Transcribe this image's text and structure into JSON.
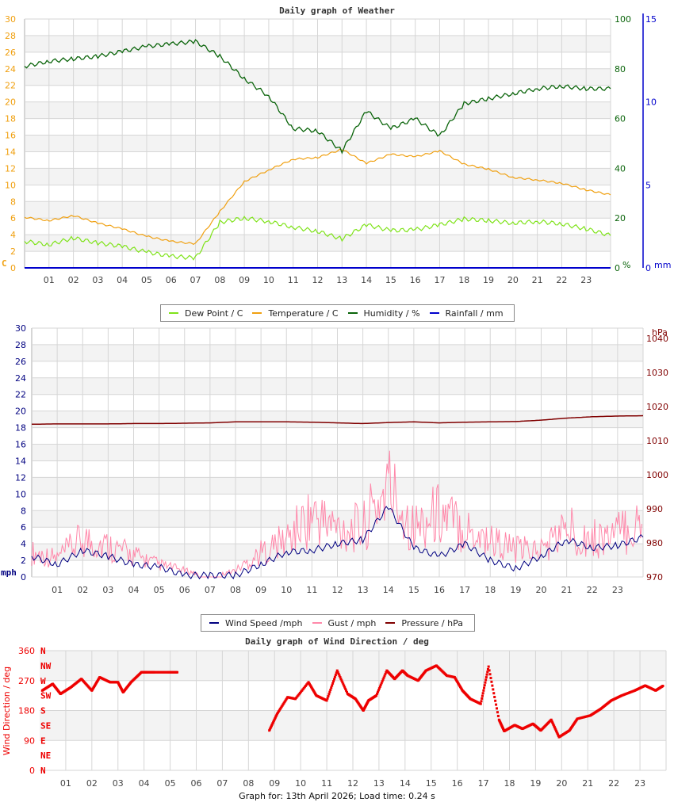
{
  "footer": {
    "text": "Graph for: 13th April 2026; Load time: 0.24 s"
  },
  "colors": {
    "dew_point": "#7fe31a",
    "temperature": "#f0a010",
    "humidity": "#0a640a",
    "rainfall": "#0000cc",
    "wind_speed": "#000080",
    "gust": "#ff88aa",
    "pressure": "#800000",
    "wind_dir": "#ee0000"
  },
  "legend1": {
    "items": [
      {
        "label": "Dew Point / C",
        "color": "#7fe31a"
      },
      {
        "label": "Temperature / C",
        "color": "#f0a010"
      },
      {
        "label": "Humidity / %",
        "color": "#0a640a"
      },
      {
        "label": "Rainfall / mm",
        "color": "#0000cc"
      }
    ]
  },
  "legend2": {
    "items": [
      {
        "label": "Wind Speed /mph",
        "color": "#000080"
      },
      {
        "label": "Gust / mph",
        "color": "#ff88aa"
      },
      {
        "label": "Pressure / hPa",
        "color": "#800000"
      }
    ]
  },
  "chart_data": [
    {
      "type": "line",
      "title": "Daily graph of Weather",
      "xlabel": "",
      "x_ticks": [
        "01",
        "02",
        "03",
        "04",
        "05",
        "06",
        "07",
        "08",
        "09",
        "10",
        "11",
        "12",
        "13",
        "14",
        "15",
        "16",
        "17",
        "18",
        "19",
        "20",
        "21",
        "22",
        "23"
      ],
      "left_axis": {
        "label": "C",
        "ticks": [
          0,
          2,
          4,
          6,
          8,
          10,
          12,
          14,
          16,
          18,
          20,
          22,
          24,
          26,
          28,
          30
        ],
        "range": [
          0,
          30
        ]
      },
      "right_axis_1": {
        "label": "%",
        "ticks": [
          0,
          20,
          40,
          60,
          80,
          100
        ],
        "range": [
          0,
          100
        ]
      },
      "right_axis_2": {
        "label": "mm",
        "ticks": [
          0,
          5,
          10,
          15
        ],
        "range": [
          0,
          15
        ]
      },
      "x": [
        0,
        1,
        2,
        3,
        4,
        5,
        6,
        7,
        8,
        9,
        10,
        11,
        12,
        13,
        14,
        15,
        16,
        17,
        18,
        19,
        20,
        21,
        22,
        23,
        24
      ],
      "series": [
        {
          "name": "Dew Point / C",
          "axis": "left",
          "values": [
            3.2,
            2.8,
            3.6,
            3.0,
            2.6,
            1.9,
            1.4,
            1.2,
            5.5,
            6.0,
            5.6,
            4.9,
            4.4,
            3.5,
            5.2,
            4.5,
            4.6,
            5.2,
            5.9,
            5.7,
            5.4,
            5.6,
            5.3,
            4.7,
            3.9
          ]
        },
        {
          "name": "Temperature / C",
          "axis": "left",
          "values": [
            6.1,
            5.7,
            6.3,
            5.4,
            4.7,
            3.8,
            3.2,
            2.9,
            6.8,
            10.4,
            11.8,
            13.1,
            13.3,
            14.3,
            12.6,
            13.7,
            13.4,
            14.1,
            12.5,
            11.9,
            10.9,
            10.6,
            10.2,
            9.4,
            8.8
          ]
        },
        {
          "name": "Humidity / %",
          "axis": "right_1",
          "values": [
            81,
            83,
            84,
            85,
            87,
            89,
            90,
            91,
            85,
            76,
            69,
            56,
            55,
            47,
            63,
            56,
            60,
            53,
            66,
            68,
            70,
            72,
            73,
            72,
            72
          ]
        },
        {
          "name": "Rainfall / mm",
          "axis": "right_2",
          "values": [
            0,
            0,
            0,
            0,
            0,
            0,
            0,
            0,
            0,
            0,
            0,
            0,
            0,
            0,
            0,
            0,
            0,
            0,
            0,
            0,
            0,
            0,
            0,
            0,
            0
          ]
        }
      ],
      "grid": true
    },
    {
      "type": "line",
      "title": "",
      "x_ticks": [
        "01",
        "02",
        "03",
        "04",
        "05",
        "06",
        "07",
        "08",
        "09",
        "10",
        "11",
        "12",
        "13",
        "14",
        "15",
        "16",
        "17",
        "18",
        "19",
        "20",
        "21",
        "22",
        "23"
      ],
      "left_axis": {
        "label": "mph",
        "ticks": [
          0,
          2,
          4,
          6,
          8,
          10,
          12,
          14,
          16,
          18,
          20,
          22,
          24,
          26,
          28,
          30
        ],
        "range": [
          0,
          30
        ]
      },
      "right_axis": {
        "label": "hPa",
        "ticks": [
          970,
          980,
          990,
          1000,
          1010,
          1020,
          1030,
          1040
        ],
        "range": [
          970,
          1043
        ]
      },
      "x": [
        0,
        1,
        2,
        3,
        4,
        5,
        6,
        7,
        8,
        9,
        10,
        11,
        12,
        13,
        14,
        15,
        16,
        17,
        18,
        19,
        20,
        21,
        22,
        23,
        24
      ],
      "series": [
        {
          "name": "Wind Speed /mph",
          "axis": "left",
          "values": [
            2.5,
            1.5,
            3.2,
            2.5,
            1.5,
            1.2,
            0.2,
            0.2,
            0.2,
            1.5,
            3,
            3.2,
            4,
            4.5,
            8.5,
            3.5,
            2.5,
            4,
            2,
            1,
            2.5,
            4.5,
            3.5,
            3.8,
            4.8
          ]
        },
        {
          "name": "Gust / mph",
          "axis": "left",
          "values": [
            4.5,
            3.5,
            7,
            5.8,
            4,
            2.3,
            1.2,
            0,
            1.2,
            4.5,
            7,
            11.5,
            9,
            9,
            17,
            9,
            12,
            9,
            7,
            5,
            5,
            9,
            7,
            8,
            10
          ]
        },
        {
          "name": "Pressure / hPa",
          "axis": "right",
          "values": [
            1014.8,
            1014.9,
            1014.9,
            1014.9,
            1015.0,
            1015.0,
            1015.1,
            1015.2,
            1015.5,
            1015.5,
            1015.5,
            1015.4,
            1015.2,
            1015.0,
            1015.3,
            1015.5,
            1015.2,
            1015.4,
            1015.5,
            1015.6,
            1016.0,
            1016.6,
            1017.0,
            1017.2,
            1017.3
          ]
        }
      ],
      "grid": true
    },
    {
      "type": "scatter",
      "title": "Daily graph of Wind Direction / deg",
      "ylabel": "Wind Direction / deg",
      "x_ticks": [
        "01",
        "02",
        "03",
        "04",
        "05",
        "06",
        "07",
        "08",
        "09",
        "10",
        "11",
        "12",
        "13",
        "14",
        "15",
        "16",
        "17",
        "18",
        "19",
        "20",
        "21",
        "22",
        "23"
      ],
      "y_ticks": [
        0,
        90,
        180,
        270,
        360
      ],
      "compass_labels": [
        "N",
        "NE",
        "E",
        "SE",
        "S",
        "SW",
        "W",
        "NW",
        "N"
      ],
      "range": [
        0,
        360
      ],
      "x": [
        0.1,
        0.5,
        0.8,
        1.2,
        1.6,
        2.0,
        2.3,
        2.7,
        3.0,
        3.2,
        3.5,
        3.9,
        4.1,
        4.4,
        4.9,
        5.3,
        8.8,
        9.1,
        9.5,
        9.8,
        10.3,
        10.6,
        11.0,
        11.4,
        11.8,
        12.1,
        12.4,
        12.6,
        12.9,
        13.3,
        13.6,
        13.9,
        14.1,
        14.5,
        14.8,
        15.2,
        15.6,
        15.9,
        16.2,
        16.5,
        16.9,
        17.2,
        17.6,
        17.8,
        18.2,
        18.5,
        18.9,
        19.2,
        19.6,
        19.9,
        20.3,
        20.6,
        21.1,
        21.5,
        21.9,
        22.3,
        22.8,
        23.2,
        23.6,
        23.9
      ],
      "values": [
        240,
        260,
        230,
        250,
        275,
        240,
        280,
        265,
        265,
        235,
        265,
        295,
        295,
        295,
        295,
        295,
        120,
        170,
        220,
        215,
        265,
        225,
        210,
        300,
        230,
        215,
        180,
        210,
        225,
        300,
        275,
        300,
        285,
        270,
        300,
        315,
        285,
        280,
        240,
        215,
        200,
        312,
        152,
        118,
        136,
        125,
        140,
        120,
        152,
        100,
        120,
        155,
        165,
        185,
        210,
        225,
        240,
        255,
        240,
        255
      ]
    }
  ]
}
